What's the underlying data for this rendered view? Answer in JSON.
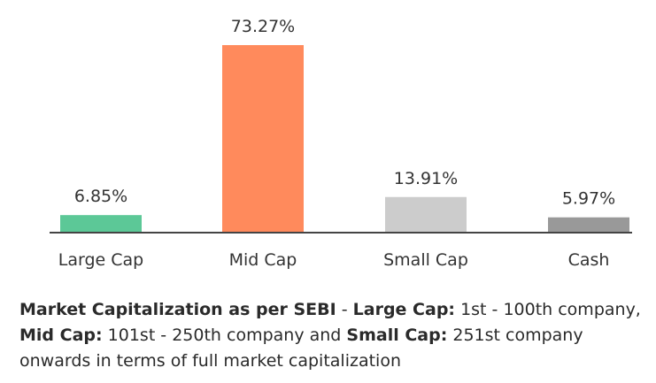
{
  "chart_data": {
    "type": "bar",
    "categories": [
      "Large Cap",
      "Mid Cap",
      "Small Cap",
      "Cash"
    ],
    "values": [
      6.85,
      73.27,
      13.91,
      5.97
    ],
    "value_labels": [
      "6.85%",
      "73.27%",
      "13.91%",
      "5.97%"
    ],
    "colors": [
      "#5cc897",
      "#ff8a5c",
      "#cccccc",
      "#999999"
    ],
    "unit": "%",
    "title": "",
    "xlabel": "",
    "ylabel": "",
    "ylim": [
      0,
      73.27
    ],
    "grid": false,
    "legend": "none"
  },
  "note": {
    "t1": "Market Capitalization as per SEBI",
    "t2": " - ",
    "t3": "Large Cap:",
    "t4": " 1st - 100th company, ",
    "t5": "Mid Cap:",
    "t6": " 101st - 250th company and ",
    "t7": "Small Cap:",
    "t8": " 251st company onwards in terms of full market capitalization"
  }
}
